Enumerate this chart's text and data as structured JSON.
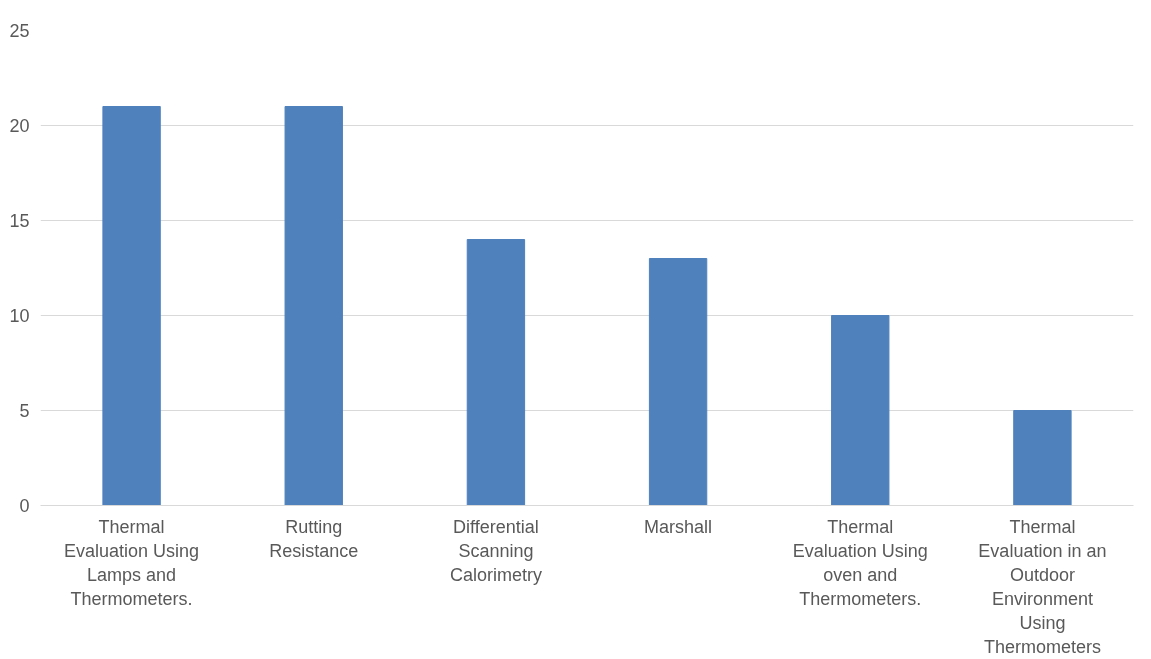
{
  "chart_data": {
    "type": "bar",
    "categories": [
      "Thermal Evaluation Using Lamps and Thermometers.",
      "Rutting Resistance",
      "Differential Scanning Calorimetry",
      "Marshall",
      "Thermal Evaluation Using oven and Thermometers.",
      "Thermal Evaluation in an Outdoor Environment Using Thermometers"
    ],
    "values": [
      21,
      21,
      14,
      13,
      10,
      5
    ],
    "color": "#4f81bd",
    "ylim": [
      0,
      25
    ],
    "yticks": [
      0,
      5,
      10,
      15,
      20,
      25
    ],
    "grid": "y"
  }
}
